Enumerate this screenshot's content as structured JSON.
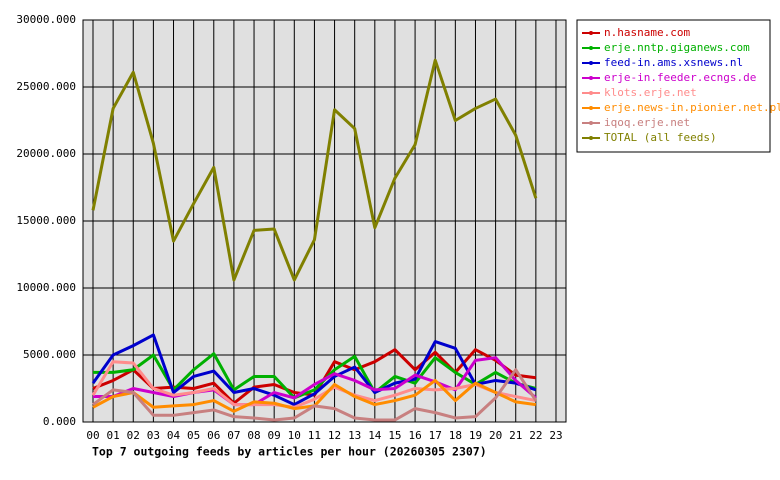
{
  "chart_data": {
    "type": "line",
    "caption": "Top 7 outgoing feeds by articles per hour (20260305 2307)",
    "categories": [
      "00",
      "01",
      "02",
      "03",
      "04",
      "05",
      "06",
      "07",
      "08",
      "09",
      "10",
      "11",
      "12",
      "13",
      "14",
      "15",
      "16",
      "17",
      "18",
      "19",
      "20",
      "21",
      "22",
      "23"
    ],
    "ylim": [
      0,
      30000
    ],
    "yticks": [
      {
        "value": 0,
        "label": "0.000"
      },
      {
        "value": 5000,
        "label": "5000.000"
      },
      {
        "value": 10000,
        "label": "10000.000"
      },
      {
        "value": 15000,
        "label": "15000.000"
      },
      {
        "value": 20000,
        "label": "20000.000"
      },
      {
        "value": 25000,
        "label": "25000.000"
      },
      {
        "value": 30000,
        "label": "30000.000"
      }
    ],
    "grid": true,
    "legend": "right",
    "series": [
      {
        "name": "n.hasname.com",
        "color": "#cc0000",
        "values": [
          2500,
          3100,
          3900,
          2500,
          2600,
          2500,
          2900,
          1400,
          2600,
          2800,
          2200,
          2000,
          4500,
          3900,
          4500,
          5400,
          3900,
          5200,
          3700,
          5400,
          4600,
          3500,
          3300,
          null
        ]
      },
      {
        "name": "erje.nntp.giganews.com",
        "color": "#00b000",
        "values": [
          3700,
          3700,
          3900,
          5000,
          2400,
          3900,
          5100,
          2400,
          3400,
          3400,
          1800,
          2400,
          3900,
          4900,
          2200,
          3400,
          2900,
          4800,
          3700,
          2800,
          3700,
          2900,
          2500,
          null
        ]
      },
      {
        "name": "feed-in.ams.xsnews.nl",
        "color": "#0000cc",
        "values": [
          2900,
          5000,
          5700,
          6500,
          2200,
          3400,
          3800,
          2200,
          2500,
          2000,
          1300,
          2100,
          3400,
          4100,
          2200,
          2900,
          3200,
          6000,
          5500,
          2800,
          3100,
          2900,
          2400,
          null
        ]
      },
      {
        "name": "erje-in.feeder.ecngs.de",
        "color": "#cc00cc",
        "values": [
          1900,
          1900,
          2500,
          2200,
          1900,
          2200,
          2400,
          1300,
          1300,
          2200,
          1800,
          2800,
          3600,
          3100,
          2400,
          2500,
          3500,
          3000,
          2400,
          4600,
          4800,
          3100,
          1800,
          null
        ]
      },
      {
        "name": "klots.erje.net",
        "color": "#ff8c8c",
        "values": [
          2000,
          4500,
          4400,
          2500,
          2000,
          2200,
          2500,
          1300,
          1300,
          1300,
          1100,
          1700,
          2600,
          2000,
          1600,
          2000,
          2500,
          2400,
          2500,
          2800,
          2200,
          1900,
          1600,
          null
        ]
      },
      {
        "name": "erje.news-in.pionier.net.pl",
        "color": "#ff8c00",
        "values": [
          1100,
          1900,
          2200,
          1100,
          1200,
          1300,
          1600,
          800,
          1500,
          1400,
          1000,
          1200,
          2800,
          1900,
          1300,
          1600,
          2000,
          3100,
          1600,
          2900,
          2200,
          1500,
          1300,
          null
        ]
      },
      {
        "name": "iqoq.erje.net",
        "color": "#c88080",
        "values": [
          1300,
          2400,
          2200,
          500,
          500,
          700,
          900,
          400,
          300,
          150,
          300,
          1200,
          1000,
          300,
          150,
          150,
          1000,
          700,
          300,
          400,
          1800,
          3900,
          1600,
          null
        ]
      },
      {
        "name": "TOTAL (all feeds)",
        "color": "#808000",
        "values": [
          15800,
          23400,
          26100,
          20800,
          13500,
          16300,
          19000,
          10600,
          14300,
          14400,
          10600,
          13600,
          23300,
          21900,
          14500,
          18200,
          20700,
          27000,
          22500,
          23400,
          24100,
          21400,
          16700,
          null
        ]
      }
    ]
  }
}
